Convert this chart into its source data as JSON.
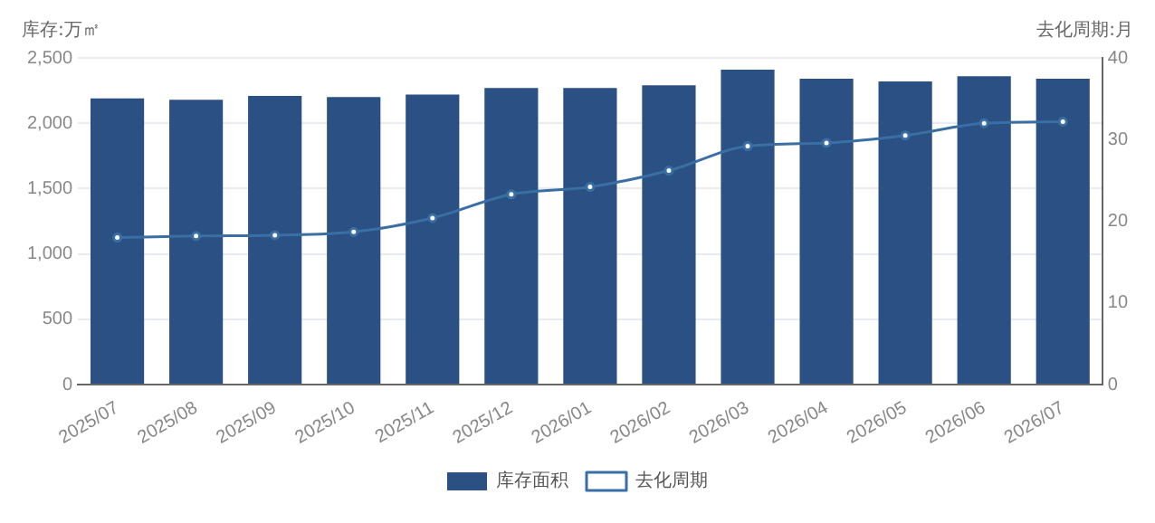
{
  "chart_data": {
    "type": "bar",
    "ylabel": "库存:万㎡",
    "y2label": "去化周期:月",
    "categories": [
      "2025/07",
      "2025/08",
      "2025/09",
      "2025/10",
      "2025/11",
      "2025/12",
      "2026/01",
      "2026/02",
      "2026/03",
      "2026/04",
      "2026/05",
      "2026/06",
      "2026/07"
    ],
    "series": [
      {
        "name": "库存面积",
        "color": "#2b5083",
        "values": [
          2190,
          2180,
          2210,
          2200,
          2220,
          2270,
          2270,
          2290,
          2410,
          2340,
          2320,
          2360,
          2340
        ]
      },
      {
        "name": "去化周期",
        "type": "line",
        "axis": "y2",
        "color": "#3a6fa5",
        "marker": "circle",
        "values": [
          18,
          18.2,
          18.3,
          18.7,
          20.4,
          23.3,
          24.2,
          26.2,
          29.2,
          29.6,
          30.5,
          32,
          32.2
        ]
      }
    ],
    "ylim": [
      0,
      2500
    ],
    "yticks": [
      0,
      500,
      {
        "value": 1000,
        "label": "1,000"
      },
      {
        "value": 1500,
        "label": "1,500"
      },
      {
        "value": 2000,
        "label": "2,000"
      },
      {
        "value": 2500,
        "label": "2,500"
      }
    ],
    "y2lim": [
      0,
      40
    ],
    "y2ticks": [
      0,
      10,
      20,
      30,
      40
    ],
    "grid": "y",
    "legend": "bottom"
  }
}
